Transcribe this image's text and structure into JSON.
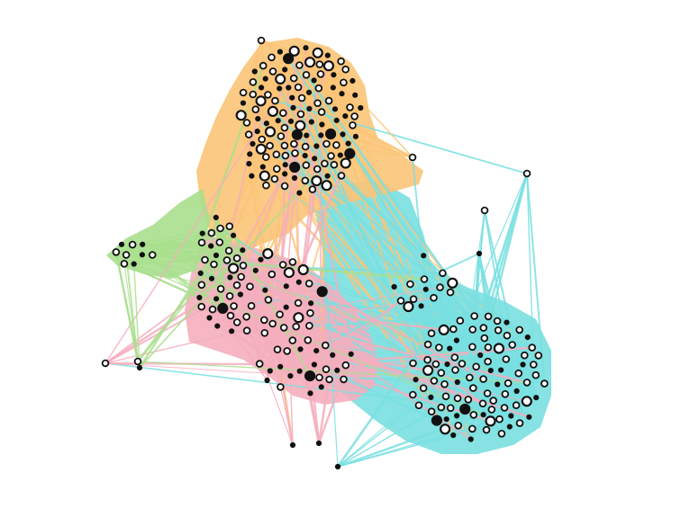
{
  "colors": {
    "background": "#ffffff",
    "orange": "#fbc477",
    "cyan": "#79dfe0",
    "pink": "#f5aebd",
    "green": "#a9df8d",
    "node_fill": "#ffffff",
    "node_stroke": "#111111"
  },
  "communities": [
    "orange",
    "cyan",
    "pink",
    "green"
  ]
}
